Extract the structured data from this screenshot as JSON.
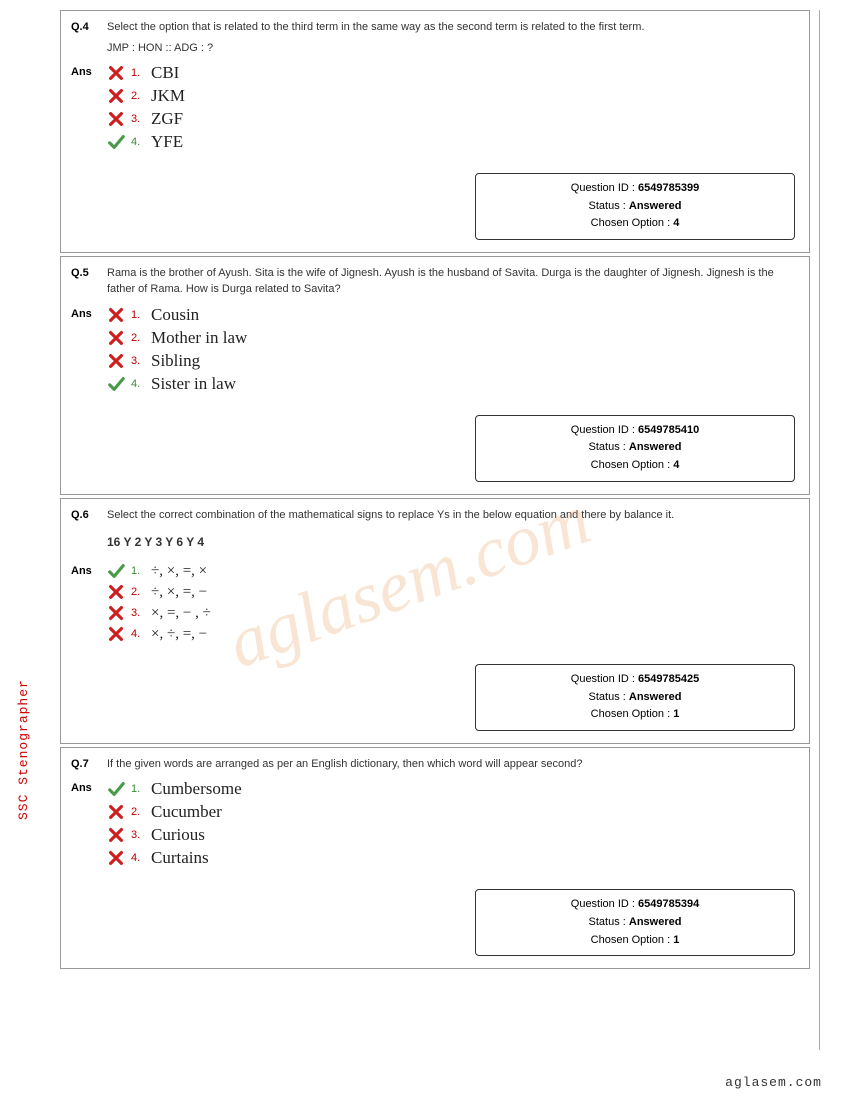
{
  "watermark": "aglasem.com",
  "side_label": "SSC Stenographer",
  "footer": "aglasem.com",
  "questions": [
    {
      "num": "Q.4",
      "text": "Select the option that is related to the third term in the same way as the second term is related to the first term.",
      "sub": "JMP : HON :: ADG : ?",
      "ans_label": "Ans",
      "options": [
        {
          "n": "1.",
          "t": "CBI",
          "correct": false
        },
        {
          "n": "2.",
          "t": "JKM",
          "correct": false
        },
        {
          "n": "3.",
          "t": "ZGF",
          "correct": false
        },
        {
          "n": "4.",
          "t": "YFE",
          "correct": true
        }
      ],
      "qid_label": "Question ID :",
      "qid": "6549785399",
      "status_label": "Status :",
      "status": "Answered",
      "chosen_label": "Chosen Option :",
      "chosen": "4"
    },
    {
      "num": "Q.5",
      "text": "Rama is the brother of Ayush. Sita is the wife of Jignesh. Ayush is the husband of Savita. Durga is the daughter of Jignesh. Jignesh is the father of Rama. How is Durga related to Savita?",
      "ans_label": "Ans",
      "options": [
        {
          "n": "1.",
          "t": "Cousin",
          "correct": false
        },
        {
          "n": "2.",
          "t": "Mother in law",
          "correct": false
        },
        {
          "n": "3.",
          "t": "Sibling",
          "correct": false
        },
        {
          "n": "4.",
          "t": "Sister in law",
          "correct": true
        }
      ],
      "qid_label": "Question ID :",
      "qid": "6549785410",
      "status_label": "Status :",
      "status": "Answered",
      "chosen_label": "Chosen Option :",
      "chosen": "4"
    },
    {
      "num": "Q.6",
      "text": "Select the correct combination of the mathematical signs to replace Ys in the below equation and there by balance it.",
      "eq": "16 Y 2 Y 3 Y 6 Y 4",
      "ans_label": "Ans",
      "small": true,
      "options": [
        {
          "n": "1.",
          "t": "÷, ×, =, ×",
          "correct": true
        },
        {
          "n": "2.",
          "t": "÷, ×, =, −",
          "correct": false
        },
        {
          "n": "3.",
          "t": "×, =, − , ÷",
          "correct": false
        },
        {
          "n": "4.",
          "t": "×, ÷, =, −",
          "correct": false
        }
      ],
      "qid_label": "Question ID :",
      "qid": "6549785425",
      "status_label": "Status :",
      "status": "Answered",
      "chosen_label": "Chosen Option :",
      "chosen": "1"
    },
    {
      "num": "Q.7",
      "text": "If the given words are arranged as per an English dictionary, then which word will appear second?",
      "ans_label": "Ans",
      "options": [
        {
          "n": "1.",
          "t": "Cumbersome",
          "correct": true
        },
        {
          "n": "2.",
          "t": "Cucumber",
          "correct": false
        },
        {
          "n": "3.",
          "t": "Curious",
          "correct": false
        },
        {
          "n": "4.",
          "t": "Curtains",
          "correct": false
        }
      ],
      "qid_label": "Question ID :",
      "qid": "6549785394",
      "status_label": "Status :",
      "status": "Answered",
      "chosen_label": "Chosen Option :",
      "chosen": "1"
    }
  ]
}
